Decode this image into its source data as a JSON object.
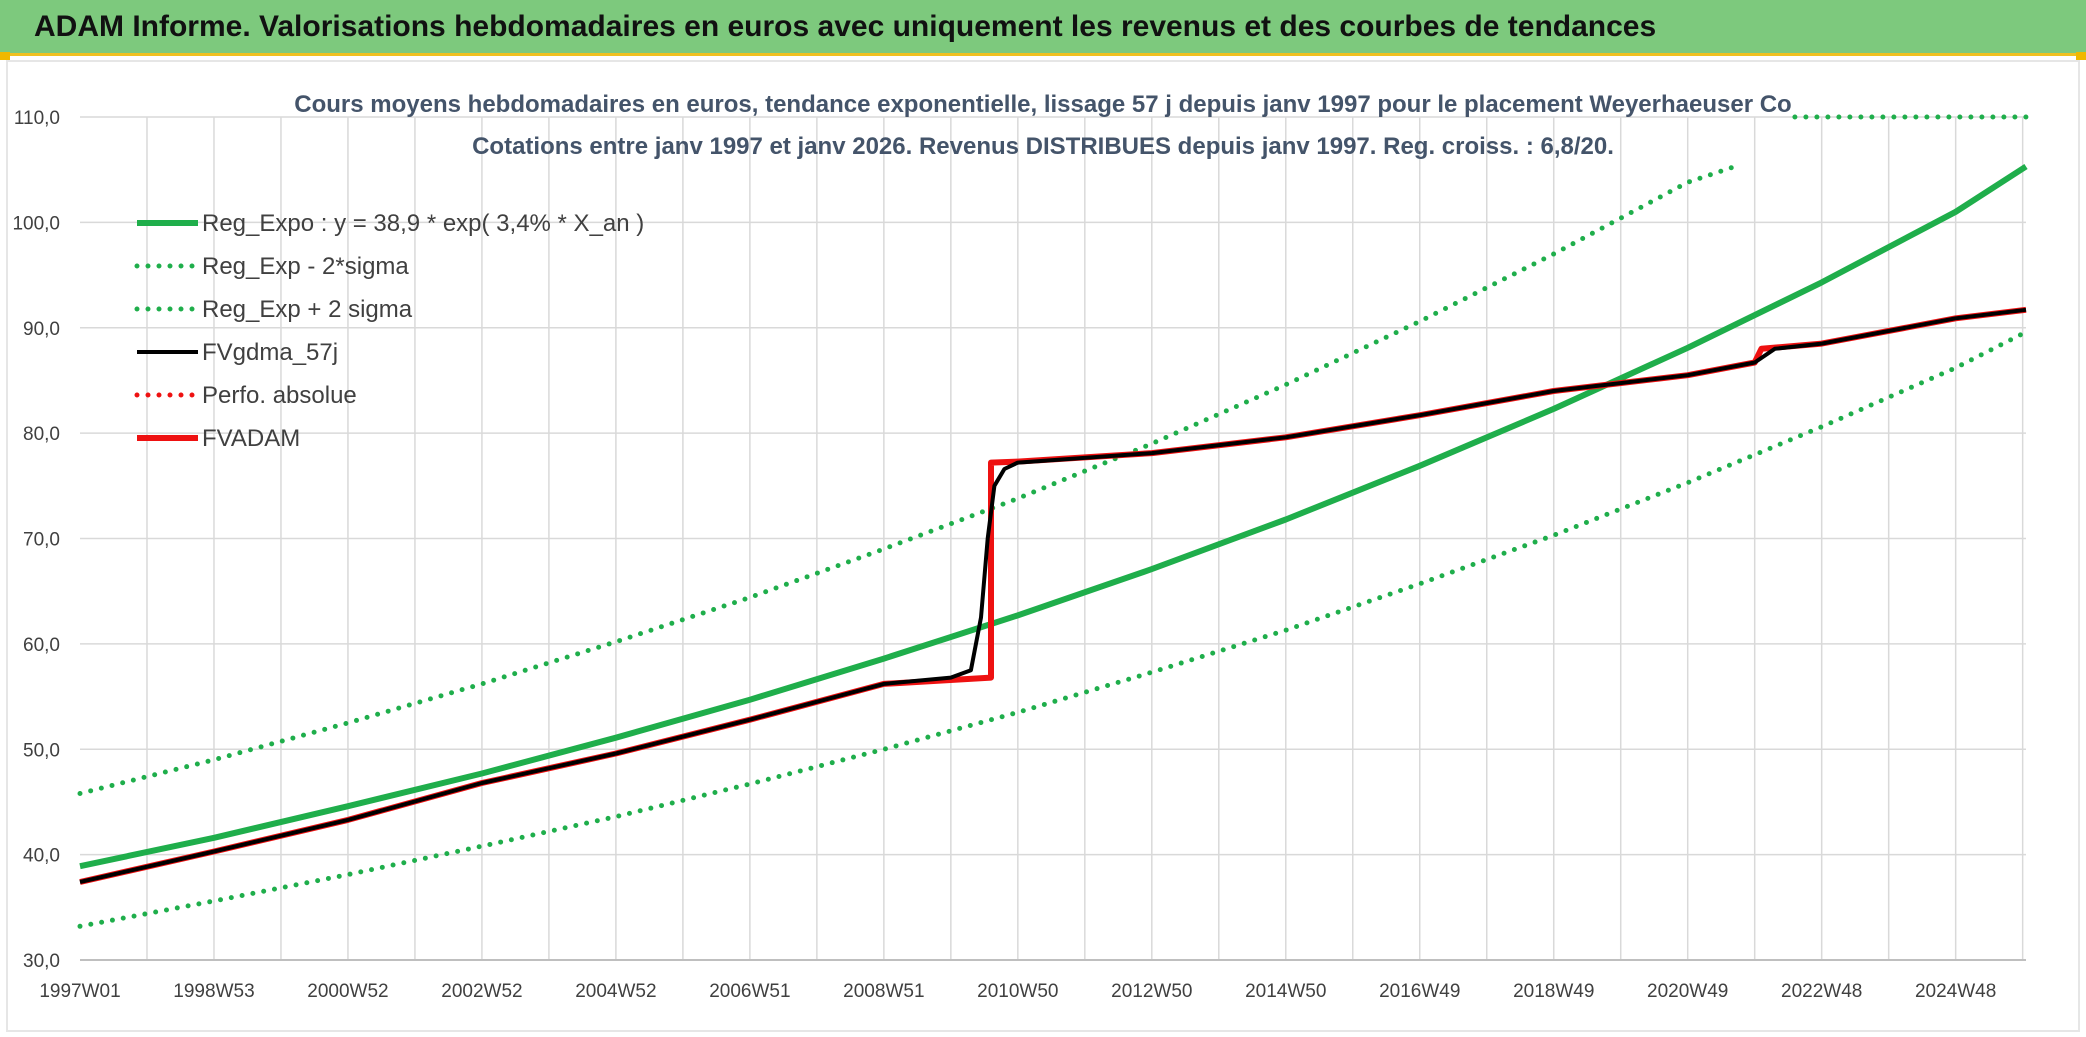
{
  "header": {
    "title": "ADAM Informe. Valorisations hebdomadaires en euros avec uniquement les revenus et des courbes de tendances"
  },
  "colors": {
    "header_bg": "#7dc97d",
    "accent": "#f0c020",
    "green": "#1fae4b",
    "red": "#ee1111",
    "black": "#000000",
    "grid": "#d9d9d9"
  },
  "chart_data": {
    "type": "line",
    "title": "Cours moyens hebdomadaires en euros, tendance exponentielle, lissage 57 j depuis janv 1997 pour le placement Weyerhaeuser Co",
    "subtitle": "Cotations entre janv 1997 et janv 2026. Revenus DISTRIBUES depuis janv 1997. Reg. croiss. : 6,8/20.",
    "xlabel": "",
    "ylabel": "",
    "ylim": [
      30,
      110
    ],
    "yticks": [
      "30,0",
      "40,0",
      "50,0",
      "60,0",
      "70,0",
      "80,0",
      "90,0",
      "100,0",
      "110,0"
    ],
    "xlim": [
      1997.0,
      2026.05
    ],
    "xticks": [
      {
        "label": "1997W01",
        "x": 1997.0
      },
      {
        "label": "1998W53",
        "x": 1999.0
      },
      {
        "label": "2000W52",
        "x": 2001.0
      },
      {
        "label": "2002W52",
        "x": 2003.0
      },
      {
        "label": "2004W52",
        "x": 2005.0
      },
      {
        "label": "2006W51",
        "x": 2007.0
      },
      {
        "label": "2008W51",
        "x": 2009.0
      },
      {
        "label": "2010W50",
        "x": 2011.0
      },
      {
        "label": "2012W50",
        "x": 2013.0
      },
      {
        "label": "2014W50",
        "x": 2015.0
      },
      {
        "label": "2016W49",
        "x": 2017.0
      },
      {
        "label": "2018W49",
        "x": 2019.0
      },
      {
        "label": "2020W49",
        "x": 2021.0
      },
      {
        "label": "2022W48",
        "x": 2023.0
      },
      {
        "label": "2024W48",
        "x": 2025.0
      }
    ],
    "grid": true,
    "legend_position": "top-left",
    "series": [
      {
        "name": "Reg_Expo : y = 38,9 * exp( 3,4% *  X_an )",
        "style": "solid",
        "color": "#1fae4b",
        "x": [
          1997.0,
          1999.0,
          2001.0,
          2003.0,
          2005.0,
          2007.0,
          2009.0,
          2011.0,
          2013.0,
          2015.0,
          2017.0,
          2019.0,
          2021.0,
          2023.0,
          2025.0,
          2026.05
        ],
        "y": [
          38.9,
          41.6,
          44.6,
          47.7,
          51.1,
          54.7,
          58.6,
          62.7,
          67.1,
          71.8,
          76.9,
          82.3,
          88.1,
          94.3,
          101.0,
          105.3
        ]
      },
      {
        "name": "Reg_Exp - 2*sigma",
        "style": "dotted",
        "color": "#1fae4b",
        "x": [
          1997.0,
          1999.0,
          2001.0,
          2003.0,
          2005.0,
          2007.0,
          2009.0,
          2011.0,
          2013.0,
          2015.0,
          2017.0,
          2019.0,
          2021.0,
          2023.0,
          2025.0,
          2026.05
        ],
        "y": [
          33.2,
          35.6,
          38.1,
          40.8,
          43.6,
          46.7,
          50.0,
          53.5,
          57.3,
          61.3,
          65.7,
          70.3,
          75.3,
          80.6,
          86.2,
          89.6
        ]
      },
      {
        "name": "Reg_Exp + 2 sigma",
        "style": "dotted",
        "color": "#1fae4b",
        "x": [
          1997.0,
          1999.0,
          2001.0,
          2003.0,
          2005.0,
          2007.0,
          2009.0,
          2011.0,
          2013.0,
          2015.0,
          2017.0,
          2019.0,
          2021.0,
          2021.8
        ],
        "y": [
          45.8,
          49.0,
          52.5,
          56.2,
          60.2,
          64.4,
          69.0,
          73.8,
          79.0,
          84.6,
          90.6,
          97.0,
          103.8,
          105.5
        ],
        "segment2": {
          "x": [
            2022.6,
            2026.05
          ],
          "y": [
            110.0,
            110.0
          ]
        }
      },
      {
        "name": "FVgdma_57j",
        "style": "solid",
        "color": "#000000",
        "x": [
          1997.0,
          1999.0,
          2001.0,
          2003.0,
          2005.0,
          2007.0,
          2009.0,
          2010.0,
          2010.3,
          2010.45,
          2010.55,
          2010.65,
          2010.8,
          2011.0,
          2013.0,
          2015.0,
          2017.0,
          2019.0,
          2021.0,
          2022.0,
          2022.3,
          2023.0,
          2025.0,
          2026.05
        ],
        "y": [
          37.4,
          40.3,
          43.3,
          46.8,
          49.6,
          52.8,
          56.2,
          56.8,
          57.5,
          62.5,
          70.0,
          75.0,
          76.6,
          77.2,
          78.1,
          79.6,
          81.7,
          84.0,
          85.5,
          86.7,
          88.0,
          88.5,
          90.9,
          91.7
        ]
      },
      {
        "name": "Perfo. absolue",
        "style": "dotted",
        "color": "#ee1111",
        "x": [
          1997.0,
          1999.0,
          2001.0,
          2003.0,
          2005.0,
          2007.0,
          2009.0,
          2010.6,
          2010.6,
          2011.0,
          2013.0,
          2015.0,
          2017.0,
          2019.0,
          2021.0,
          2022.0,
          2022.1,
          2023.0,
          2025.0,
          2026.05
        ],
        "y": [
          37.4,
          40.3,
          43.3,
          46.8,
          49.6,
          52.8,
          56.2,
          56.8,
          77.2,
          77.3,
          78.1,
          79.6,
          81.7,
          84.0,
          85.5,
          86.7,
          88.0,
          88.5,
          90.9,
          91.7
        ]
      },
      {
        "name": "FVADAM",
        "style": "solid",
        "color": "#ee1111",
        "x": [
          1997.0,
          1999.0,
          2001.0,
          2003.0,
          2005.0,
          2007.0,
          2009.0,
          2010.6,
          2010.6,
          2011.0,
          2013.0,
          2015.0,
          2017.0,
          2019.0,
          2021.0,
          2022.0,
          2022.1,
          2023.0,
          2025.0,
          2026.05
        ],
        "y": [
          37.4,
          40.3,
          43.3,
          46.8,
          49.6,
          52.8,
          56.2,
          56.8,
          77.2,
          77.3,
          78.1,
          79.6,
          81.7,
          84.0,
          85.5,
          86.7,
          88.0,
          88.5,
          90.9,
          91.7
        ]
      }
    ]
  }
}
